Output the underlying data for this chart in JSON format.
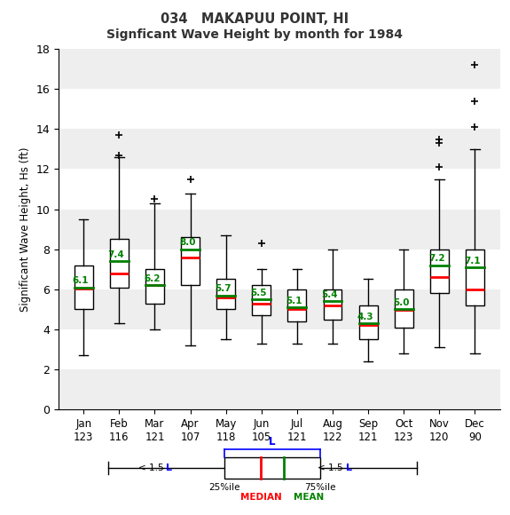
{
  "title1": "034   MAKAPUU POINT, HI",
  "title2": "Signficant Wave Height by month for 1984",
  "ylabel": "Significant Wave Height, Hs (ft)",
  "ylim": [
    0,
    18
  ],
  "yticks": [
    0,
    2,
    4,
    6,
    8,
    10,
    12,
    14,
    16,
    18
  ],
  "months": [
    "Jan",
    "Feb",
    "Mar",
    "Apr",
    "May",
    "Jun",
    "Jul",
    "Aug",
    "Sep",
    "Oct",
    "Nov",
    "Dec"
  ],
  "counts": [
    123,
    116,
    121,
    107,
    118,
    105,
    121,
    122,
    121,
    123,
    120,
    90
  ],
  "boxes": [
    {
      "q1": 5.0,
      "median": 6.05,
      "q3": 7.2,
      "whislo": 2.7,
      "whishi": 9.5,
      "mean": 6.1,
      "fliers": []
    },
    {
      "q1": 6.1,
      "median": 6.8,
      "q3": 8.5,
      "whislo": 4.3,
      "whishi": 12.6,
      "mean": 7.4,
      "fliers": [
        13.7,
        12.7
      ]
    },
    {
      "q1": 5.3,
      "median": 6.2,
      "q3": 7.0,
      "whislo": 4.0,
      "whishi": 10.3,
      "mean": 6.2,
      "fliers": [
        10.5
      ]
    },
    {
      "q1": 6.2,
      "median": 7.6,
      "q3": 8.6,
      "whislo": 3.2,
      "whishi": 10.8,
      "mean": 8.0,
      "fliers": [
        11.5
      ]
    },
    {
      "q1": 5.0,
      "median": 5.6,
      "q3": 6.5,
      "whislo": 3.5,
      "whishi": 8.7,
      "mean": 5.7,
      "fliers": []
    },
    {
      "q1": 4.7,
      "median": 5.3,
      "q3": 6.2,
      "whislo": 3.3,
      "whishi": 7.0,
      "mean": 5.5,
      "fliers": [
        8.3
      ]
    },
    {
      "q1": 4.4,
      "median": 5.0,
      "q3": 6.0,
      "whislo": 3.3,
      "whishi": 7.0,
      "mean": 5.1,
      "fliers": []
    },
    {
      "q1": 4.5,
      "median": 5.2,
      "q3": 6.0,
      "whislo": 3.3,
      "whishi": 8.0,
      "mean": 5.4,
      "fliers": []
    },
    {
      "q1": 3.5,
      "median": 4.2,
      "q3": 5.2,
      "whislo": 2.4,
      "whishi": 6.5,
      "mean": 4.3,
      "fliers": []
    },
    {
      "q1": 4.1,
      "median": 4.95,
      "q3": 6.0,
      "whislo": 2.8,
      "whishi": 8.0,
      "mean": 5.0,
      "fliers": []
    },
    {
      "q1": 5.8,
      "median": 6.6,
      "q3": 8.0,
      "whislo": 3.1,
      "whishi": 11.5,
      "mean": 7.2,
      "fliers": [
        12.1,
        13.3,
        13.5
      ]
    },
    {
      "q1": 5.2,
      "median": 6.0,
      "q3": 8.0,
      "whislo": 2.8,
      "whishi": 13.0,
      "mean": 7.1,
      "fliers": [
        14.1,
        15.4,
        17.2
      ]
    }
  ],
  "background_bands": [
    [
      0,
      2,
      "#eeeeee"
    ],
    [
      2,
      4,
      "#ffffff"
    ],
    [
      4,
      6,
      "#eeeeee"
    ],
    [
      6,
      8,
      "#ffffff"
    ],
    [
      8,
      10,
      "#eeeeee"
    ],
    [
      10,
      12,
      "#ffffff"
    ],
    [
      12,
      14,
      "#eeeeee"
    ],
    [
      14,
      16,
      "#ffffff"
    ],
    [
      16,
      18,
      "#eeeeee"
    ]
  ]
}
